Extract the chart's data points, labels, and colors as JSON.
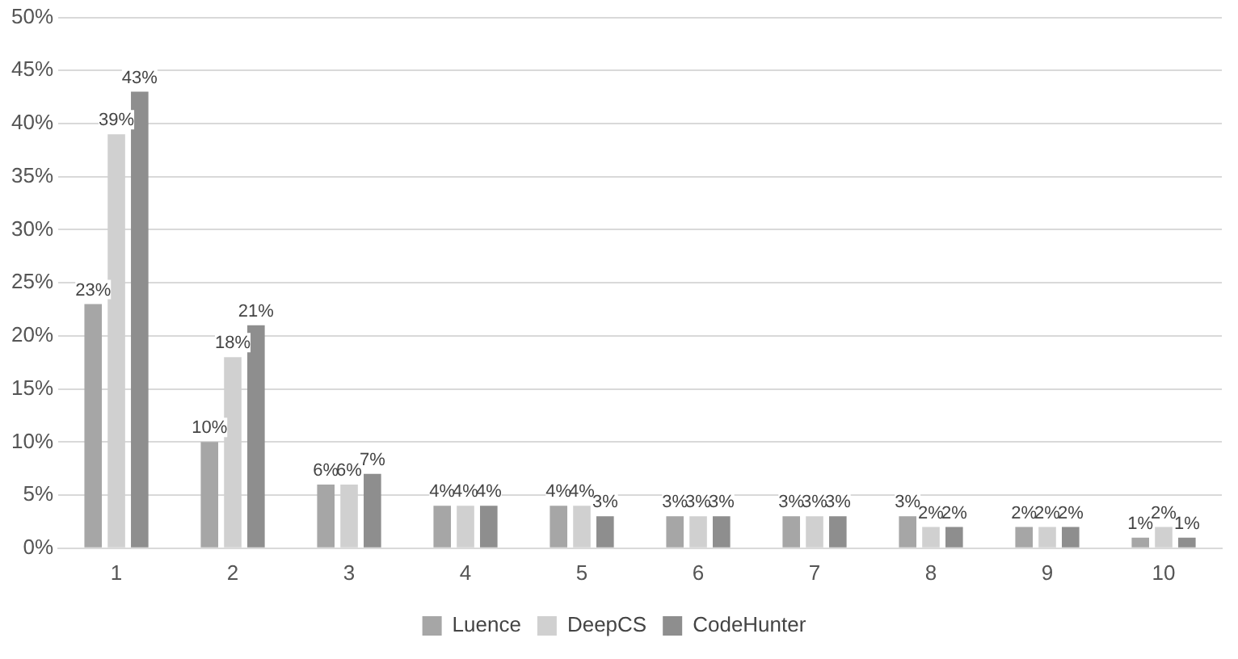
{
  "chart_data": {
    "type": "bar",
    "categories": [
      "1",
      "2",
      "3",
      "4",
      "5",
      "6",
      "7",
      "8",
      "9",
      "10"
    ],
    "series": [
      {
        "name": "Luence",
        "color": "#a6a6a6",
        "values": [
          23,
          10,
          6,
          4,
          4,
          3,
          3,
          3,
          2,
          1
        ],
        "value_labels": [
          "23%",
          "10%",
          "6%",
          "4%",
          "4%",
          "3%",
          "3%",
          "3%",
          "2%",
          "1%"
        ]
      },
      {
        "name": "DeepCS",
        "color": "#d0d0d0",
        "values": [
          39,
          18,
          6,
          4,
          4,
          3,
          3,
          2,
          2,
          2
        ],
        "value_labels": [
          "39%",
          "18%",
          "6%",
          "4%",
          "4%",
          "3%",
          "3%",
          "2%",
          "2%",
          "2%"
        ]
      },
      {
        "name": "CodeHunter",
        "color": "#8e8e8e",
        "values": [
          43,
          21,
          7,
          4,
          3,
          3,
          3,
          2,
          2,
          1
        ],
        "value_labels": [
          "43%",
          "21%",
          "7%",
          "4%",
          "3%",
          "3%",
          "3%",
          "2%",
          "2%",
          "1%"
        ]
      }
    ],
    "ylim": [
      0,
      50
    ],
    "yticks": [
      {
        "value": 0,
        "label": "0%"
      },
      {
        "value": 5,
        "label": "5%"
      },
      {
        "value": 10,
        "label": "10%"
      },
      {
        "value": 15,
        "label": "15%"
      },
      {
        "value": 20,
        "label": "20%"
      },
      {
        "value": 25,
        "label": "25%"
      },
      {
        "value": 30,
        "label": "30%"
      },
      {
        "value": 35,
        "label": "35%"
      },
      {
        "value": 40,
        "label": "40%"
      },
      {
        "value": 45,
        "label": "45%"
      },
      {
        "value": 50,
        "label": "50%"
      }
    ],
    "grid": "y",
    "legend": "bottom"
  }
}
